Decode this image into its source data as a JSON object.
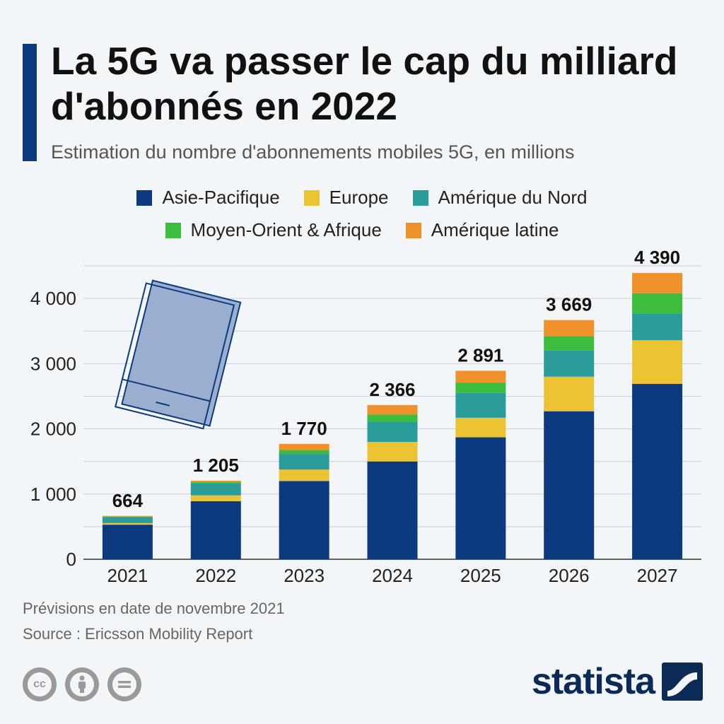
{
  "header": {
    "title": "La 5G va passer le cap du milliard d'abonnés en 2022",
    "subtitle": "Estimation du nombre d'abonnements mobiles 5G, en millions"
  },
  "legend": [
    {
      "label": "Asie-Pacifique",
      "color": "#0b3a7e"
    },
    {
      "label": "Europe",
      "color": "#ecc332"
    },
    {
      "label": "Amérique du Nord",
      "color": "#2a9d9a"
    },
    {
      "label": "Moyen-Orient & Afrique",
      "color": "#3dbd3d"
    },
    {
      "label": "Amérique latine",
      "color": "#f0922b"
    }
  ],
  "chart_data": {
    "type": "bar",
    "stacked": true,
    "title": "La 5G va passer le cap du milliard d'abonnés en 2022",
    "subtitle": "Estimation du nombre d'abonnements mobiles 5G, en millions",
    "categories": [
      "2021",
      "2022",
      "2023",
      "2024",
      "2025",
      "2026",
      "2027"
    ],
    "series": [
      {
        "name": "Asie-Pacifique",
        "color": "#0b3a7e",
        "values": [
          530,
          890,
          1200,
          1500,
          1870,
          2270,
          2690
        ]
      },
      {
        "name": "Europe",
        "color": "#ecc332",
        "values": [
          25,
          90,
          175,
          300,
          300,
          530,
          670
        ]
      },
      {
        "name": "Amérique du Nord",
        "color": "#2a9d9a",
        "values": [
          85,
          180,
          240,
          310,
          380,
          400,
          410
        ]
      },
      {
        "name": "Moyen-Orient & Afrique",
        "color": "#3dbd3d",
        "values": [
          15,
          25,
          60,
          110,
          160,
          220,
          310
        ]
      },
      {
        "name": "Amérique latine",
        "color": "#f0922b",
        "values": [
          9,
          20,
          95,
          146,
          181,
          249,
          310
        ]
      }
    ],
    "totals": [
      "664",
      "1 205",
      "1 770",
      "2 366",
      "2 891",
      "3 669",
      "4 390"
    ],
    "y_ticks": [
      0,
      1000,
      2000,
      3000,
      4000
    ],
    "y_tick_labels": [
      "0",
      "1 000",
      "2 000",
      "3 000",
      "4 000"
    ],
    "ylim": [
      0,
      4500
    ],
    "grid": true,
    "legend_position": "top"
  },
  "footer": {
    "note": "Prévisions en date de novembre 2021",
    "source": "Source : Ericsson Mobility Report",
    "brand": "statista"
  },
  "icons": {
    "decoration": "smartphone-icon",
    "license": [
      "creative-commons-icon",
      "attribution-icon",
      "no-derivatives-icon"
    ],
    "brand_logo": "statista-logo-icon"
  }
}
